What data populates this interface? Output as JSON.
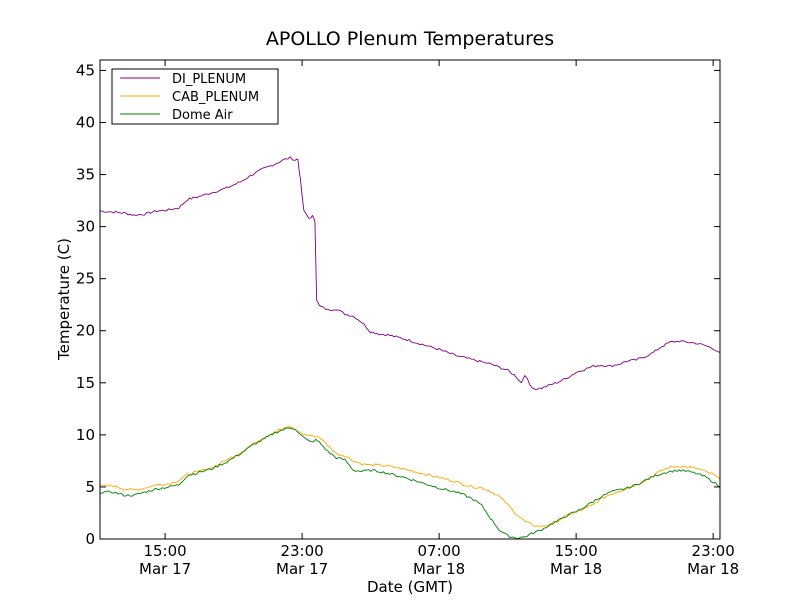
{
  "chart_data": {
    "type": "line",
    "title": "APOLLO Plenum Temperatures",
    "xlabel": "Date (GMT)",
    "ylabel": "Temperature (C)",
    "xlim": [
      11.2,
      47.4
    ],
    "ylim": [
      0,
      46
    ],
    "yticks": [
      0,
      5,
      10,
      15,
      20,
      25,
      30,
      35,
      40,
      45
    ],
    "xticks": [
      {
        "x": 15,
        "time": "15:00",
        "date": "Mar 17"
      },
      {
        "x": 23,
        "time": "23:00",
        "date": "Mar 17"
      },
      {
        "x": 31,
        "time": "07:00",
        "date": "Mar 18"
      },
      {
        "x": 39,
        "time": "15:00",
        "date": "Mar 18"
      },
      {
        "x": 47,
        "time": "23:00",
        "date": "Mar 18"
      }
    ],
    "legend": {
      "position": "top-left"
    },
    "x_units": "hours since Mar 17 00:00 GMT",
    "series": [
      {
        "name": "DI_PLENUM",
        "color": "#800080",
        "x": [
          11.2,
          12.0,
          12.6,
          13.2,
          13.8,
          14.5,
          15.2,
          15.8,
          16.3,
          17.0,
          17.8,
          18.6,
          19.4,
          20.2,
          20.8,
          21.4,
          21.9,
          22.3,
          22.6,
          22.75,
          22.9,
          23.1,
          23.4,
          23.6,
          23.75,
          23.85,
          24.0,
          24.5,
          25.0,
          25.5,
          26.0,
          26.5,
          27.0,
          27.5,
          28.0,
          29.0,
          30.0,
          31.0,
          32.0,
          33.0,
          34.0,
          35.0,
          35.5,
          35.8,
          36.0,
          36.3,
          36.6,
          37.0,
          37.5,
          38.0,
          38.5,
          39.0,
          39.5,
          40.0,
          40.5,
          41.0,
          41.5,
          42.0,
          42.5,
          43.0,
          43.5,
          44.0,
          44.5,
          45.0,
          45.5,
          46.0,
          46.5,
          47.0,
          47.4
        ],
        "values": [
          31.5,
          31.4,
          31.3,
          31.1,
          31.2,
          31.5,
          31.6,
          31.8,
          32.6,
          32.9,
          33.3,
          33.7,
          34.3,
          35.1,
          35.6,
          36.0,
          36.4,
          36.6,
          36.4,
          36.5,
          34.5,
          31.5,
          30.8,
          31.0,
          30.5,
          23.0,
          22.4,
          22.0,
          22.1,
          21.6,
          21.4,
          20.8,
          19.9,
          19.7,
          19.6,
          19.2,
          18.7,
          18.2,
          17.6,
          17.2,
          16.8,
          16.2,
          15.6,
          15.0,
          15.8,
          14.8,
          14.4,
          14.5,
          14.8,
          15.1,
          15.5,
          16.0,
          16.3,
          16.6,
          16.7,
          16.6,
          16.8,
          17.1,
          17.2,
          17.5,
          17.9,
          18.5,
          18.9,
          19.0,
          18.9,
          18.8,
          18.6,
          18.3,
          17.9
        ]
      },
      {
        "name": "CAB_PLENUM",
        "color": "#ffa500",
        "x": [
          11.2,
          12.0,
          12.6,
          13.2,
          13.8,
          14.5,
          15.2,
          15.8,
          16.3,
          17.0,
          17.8,
          18.6,
          19.4,
          20.2,
          20.8,
          21.4,
          21.9,
          22.3,
          22.6,
          22.9,
          23.2,
          23.6,
          24.0,
          24.5,
          25.0,
          25.5,
          26.0,
          26.5,
          27.0,
          27.5,
          28.0,
          29.0,
          30.0,
          31.0,
          32.0,
          32.5,
          33.0,
          33.5,
          34.0,
          34.5,
          35.0,
          35.5,
          36.0,
          36.5,
          37.0,
          37.5,
          38.0,
          38.5,
          39.0,
          39.5,
          40.0,
          40.5,
          41.0,
          41.5,
          42.0,
          42.5,
          43.0,
          43.5,
          44.0,
          44.5,
          45.0,
          45.5,
          46.0,
          46.5,
          47.0,
          47.4
        ],
        "values": [
          5.1,
          5.1,
          4.8,
          4.7,
          4.9,
          5.2,
          5.3,
          5.6,
          6.2,
          6.5,
          6.9,
          7.6,
          8.3,
          9.2,
          9.8,
          10.3,
          10.6,
          10.8,
          10.5,
          10.2,
          10.0,
          9.9,
          9.8,
          9.0,
          8.2,
          8.0,
          7.5,
          7.2,
          7.1,
          7.1,
          7.0,
          6.7,
          6.3,
          5.9,
          5.5,
          5.2,
          5.0,
          4.9,
          4.6,
          4.1,
          3.3,
          2.4,
          1.7,
          1.3,
          1.2,
          1.4,
          1.8,
          2.3,
          2.6,
          2.9,
          3.3,
          3.9,
          4.3,
          4.6,
          4.9,
          5.2,
          5.6,
          6.1,
          6.6,
          6.9,
          7.0,
          6.9,
          6.8,
          6.5,
          6.2,
          5.7
        ]
      },
      {
        "name": "Dome Air",
        "color": "#008000",
        "x": [
          11.2,
          12.0,
          12.6,
          13.2,
          13.8,
          14.5,
          15.2,
          15.8,
          16.3,
          17.0,
          17.8,
          18.6,
          19.4,
          20.2,
          20.8,
          21.4,
          21.9,
          22.3,
          22.6,
          22.9,
          23.2,
          23.5,
          23.8,
          24.0,
          24.5,
          25.0,
          25.5,
          26.0,
          26.5,
          27.0,
          27.5,
          28.0,
          29.0,
          30.0,
          31.0,
          32.0,
          32.5,
          33.0,
          33.5,
          34.0,
          34.5,
          35.0,
          35.5,
          36.0,
          36.5,
          37.0,
          37.5,
          38.0,
          38.5,
          39.0,
          39.5,
          40.0,
          40.5,
          41.0,
          41.5,
          42.0,
          42.5,
          43.0,
          43.5,
          44.0,
          44.5,
          45.0,
          45.5,
          46.0,
          46.5,
          47.0,
          47.4
        ],
        "values": [
          4.5,
          4.5,
          4.2,
          4.2,
          4.5,
          4.8,
          5.0,
          5.2,
          6.1,
          6.4,
          6.8,
          7.4,
          8.2,
          9.1,
          9.6,
          10.2,
          10.5,
          10.7,
          10.6,
          10.0,
          9.6,
          9.3,
          9.5,
          9.3,
          8.4,
          7.8,
          7.6,
          6.6,
          6.5,
          6.6,
          6.5,
          6.3,
          5.9,
          5.4,
          4.9,
          4.5,
          4.2,
          3.8,
          3.2,
          2.0,
          0.9,
          0.3,
          0.1,
          0.2,
          0.6,
          0.9,
          1.4,
          1.8,
          2.3,
          2.6,
          3.1,
          3.6,
          4.1,
          4.5,
          4.7,
          4.9,
          5.2,
          5.6,
          6.0,
          6.3,
          6.5,
          6.6,
          6.5,
          6.3,
          6.0,
          5.5,
          5.0
        ]
      }
    ]
  }
}
